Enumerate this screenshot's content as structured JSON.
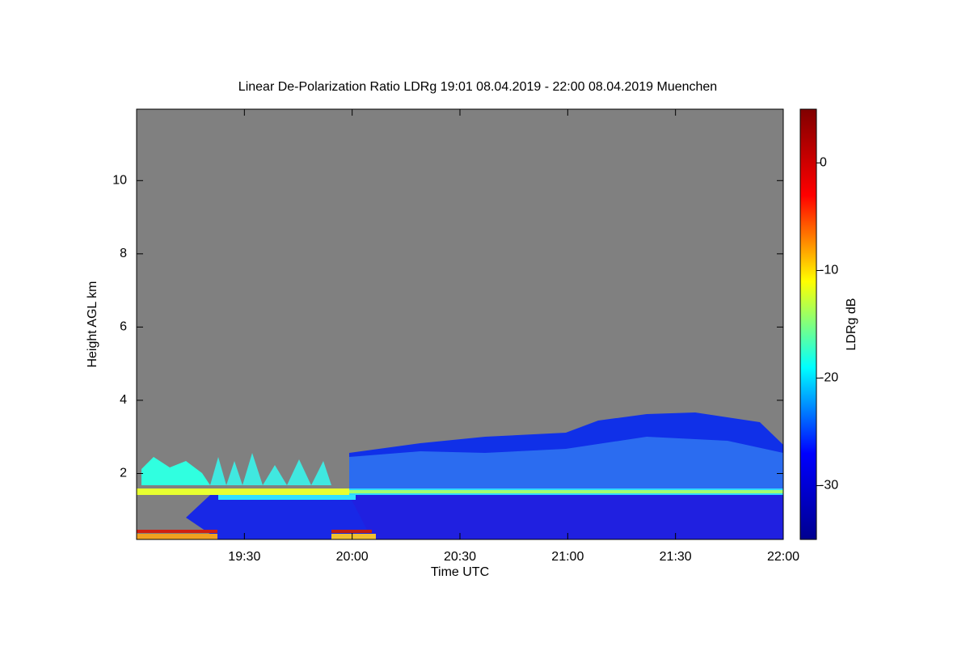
{
  "chart_data": {
    "type": "heatmap",
    "title": "Linear De-Polarization Ratio LDRg   19:01 08.04.2019 - 22:00 08.04.2019 Muenchen",
    "x_label": "Time UTC",
    "y_label": "Height AGL km",
    "colorbar_label": "LDRg dB",
    "xlim": [
      1140,
      1320
    ],
    "xticks": [
      {
        "value": 1170,
        "label": "19:30"
      },
      {
        "value": 1200,
        "label": "20:00"
      },
      {
        "value": 1230,
        "label": "20:30"
      },
      {
        "value": 1260,
        "label": "21:00"
      },
      {
        "value": 1290,
        "label": "21:30"
      },
      {
        "value": 1320,
        "label": "22:00"
      }
    ],
    "ylim": [
      0.2,
      11.95
    ],
    "yticks": [
      2,
      4,
      6,
      8,
      10
    ],
    "clim": [
      -35,
      5
    ],
    "cticks": [
      0,
      -10,
      -20,
      -30
    ],
    "colorscale": [
      "#00008f",
      "#0000ff",
      "#00ffff",
      "#ffff00",
      "#ff0000",
      "#800000"
    ],
    "background": "#808080"
  }
}
